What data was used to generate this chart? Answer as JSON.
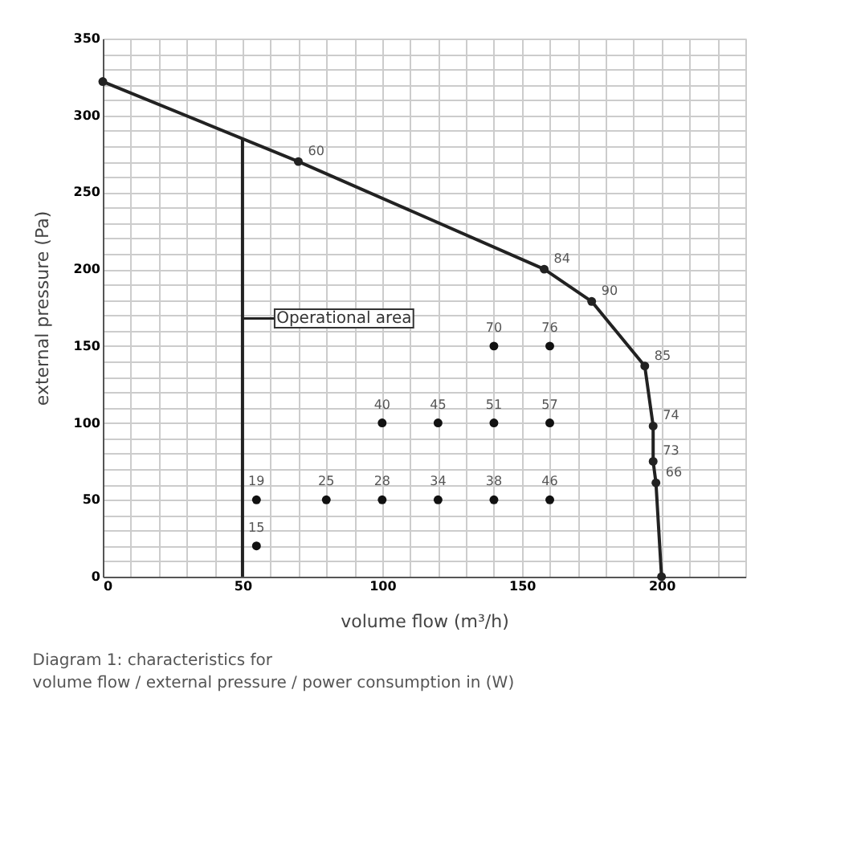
{
  "chart_data": {
    "type": "line",
    "xlabel": "volume flow (m³/h)",
    "ylabel": "external pressure (Pa)",
    "xlim": [
      0,
      230
    ],
    "ylim": [
      0,
      350
    ],
    "xticks": [
      0,
      {
        "value": 10,
        "label": null
      },
      {
        "value": 20,
        "label": null
      },
      {
        "value": 30,
        "label": null
      },
      {
        "value": 40,
        "label": null
      },
      50,
      {
        "value": 60,
        "label": null
      },
      {
        "value": 70,
        "label": null
      },
      {
        "value": 80,
        "label": null
      },
      {
        "value": 90,
        "label": null
      },
      100,
      {
        "value": 110,
        "label": null
      },
      {
        "value": 120,
        "label": null
      },
      {
        "value": 130,
        "label": null
      },
      {
        "value": 140,
        "label": null
      },
      150,
      {
        "value": 160,
        "label": null
      },
      {
        "value": 170,
        "label": null
      },
      {
        "value": 180,
        "label": null
      },
      {
        "value": 190,
        "label": null
      },
      200,
      {
        "value": 210,
        "label": null
      },
      {
        "value": 220,
        "label": null
      },
      {
        "value": 230,
        "label": null
      }
    ],
    "yticks": [
      0,
      {
        "value": 10,
        "label": null
      },
      {
        "value": 20,
        "label": null
      },
      {
        "value": 30,
        "label": null
      },
      {
        "value": 40,
        "label": null
      },
      50,
      {
        "value": 60,
        "label": null
      },
      {
        "value": 70,
        "label": null
      },
      {
        "value": 80,
        "label": null
      },
      {
        "value": 90,
        "label": null
      },
      100,
      {
        "value": 110,
        "label": null
      },
      {
        "value": 120,
        "label": null
      },
      {
        "value": 130,
        "label": null
      },
      {
        "value": 140,
        "label": null
      },
      150,
      {
        "value": 160,
        "label": null
      },
      {
        "value": 170,
        "label": null
      },
      {
        "value": 180,
        "label": null
      },
      {
        "value": 190,
        "label": null
      },
      200,
      {
        "value": 210,
        "label": null
      },
      {
        "value": 220,
        "label": null
      },
      {
        "value": 230,
        "label": null
      },
      {
        "value": 240,
        "label": null
      },
      250,
      {
        "value": 260,
        "label": null
      },
      {
        "value": 270,
        "label": null
      },
      {
        "value": 280,
        "label": null
      },
      {
        "value": 290,
        "label": null
      },
      300,
      {
        "value": 310,
        "label": null
      },
      {
        "value": 320,
        "label": null
      },
      {
        "value": 330,
        "label": null
      },
      {
        "value": 340,
        "label": null
      },
      350
    ],
    "grid": true,
    "marker": "circle",
    "series": [
      {
        "color": "#222222",
        "x": [
          0,
          70,
          158,
          175,
          194,
          197,
          197,
          198,
          200
        ],
        "values": [
          322,
          270,
          200,
          179,
          137,
          98,
          75,
          61,
          0
        ]
      },
      {
        "marker": "none",
        "color": "#222222",
        "x": [
          50,
          50
        ],
        "values": [
          0,
          285
        ]
      },
      {
        "type": "scatter",
        "color": "#111111",
        "x": [
          55,
          55,
          80,
          100,
          120,
          140,
          160,
          100,
          120,
          140,
          160,
          140,
          160
        ],
        "values": [
          20,
          50,
          50,
          50,
          50,
          50,
          50,
          100,
          100,
          100,
          100,
          150,
          150
        ]
      }
    ],
    "annotations": [
      {
        "text": "Operational area",
        "x": 50,
        "y": 168
      },
      {
        "text": "60",
        "x": 70,
        "y": 270
      },
      {
        "text": "84",
        "x": 158,
        "y": 200
      },
      {
        "text": "90",
        "x": 175,
        "y": 179
      },
      {
        "text": "85",
        "x": 194,
        "y": 137
      },
      {
        "text": "74",
        "x": 197,
        "y": 98
      },
      {
        "text": "73",
        "x": 197,
        "y": 75
      },
      {
        "text": "66",
        "x": 198,
        "y": 61
      },
      {
        "text": "15",
        "x": 55,
        "y": 20
      },
      {
        "text": "19",
        "x": 55,
        "y": 50
      },
      {
        "text": "25",
        "x": 80,
        "y": 50
      },
      {
        "text": "28",
        "x": 100,
        "y": 50
      },
      {
        "text": "34",
        "x": 120,
        "y": 50
      },
      {
        "text": "38",
        "x": 140,
        "y": 50
      },
      {
        "text": "46",
        "x": 160,
        "y": 50
      },
      {
        "text": "40",
        "x": 100,
        "y": 100
      },
      {
        "text": "45",
        "x": 120,
        "y": 100
      },
      {
        "text": "51",
        "x": 140,
        "y": 100
      },
      {
        "text": "57",
        "x": 160,
        "y": 100
      },
      {
        "text": "70",
        "x": 140,
        "y": 150
      },
      {
        "text": "76",
        "x": 160,
        "y": 150
      },
      "Diagram 1:    characteristics for\n                      volume flow / external pressure / power consumption in (W)"
    ]
  }
}
